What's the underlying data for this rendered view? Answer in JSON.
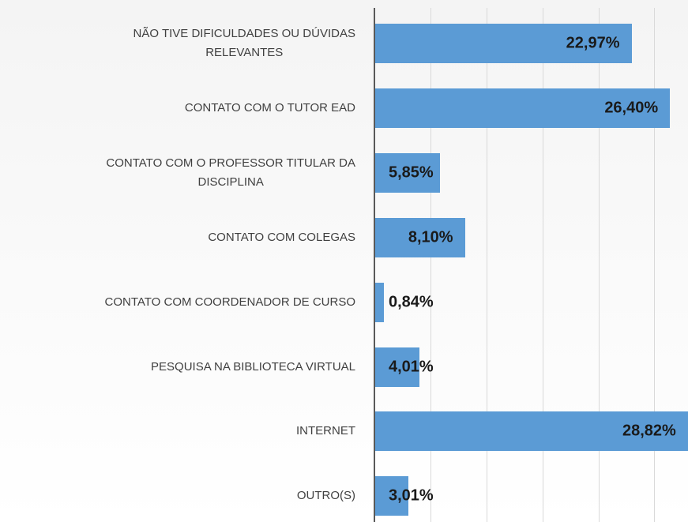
{
  "chart_data": {
    "type": "barh",
    "categories": [
      "NÃO TIVE DIFICULDADES OU DÚVIDAS\nRELEVANTES",
      "CONTATO COM O TUTOR EAD",
      "CONTATO COM O PROFESSOR TITULAR DA\nDISCIPLINA",
      "CONTATO COM COLEGAS",
      "CONTATO COM COORDENADOR DE CURSO",
      "PESQUISA NA BIBLIOTECA VIRTUAL",
      "INTERNET",
      "OUTRO(S)"
    ],
    "values": [
      22.97,
      26.4,
      5.85,
      8.1,
      0.84,
      4.01,
      28.82,
      3.01
    ],
    "value_labels": [
      "22,97%",
      "26,40%",
      "5,85%",
      "8,10%",
      "0,84%",
      "4,01%",
      "28,82%",
      "3,01%"
    ],
    "color": "#5b9bd5",
    "xlim": [
      0,
      28
    ],
    "xticks": [
      0,
      5,
      10,
      15,
      20,
      25
    ],
    "grid": true
  }
}
